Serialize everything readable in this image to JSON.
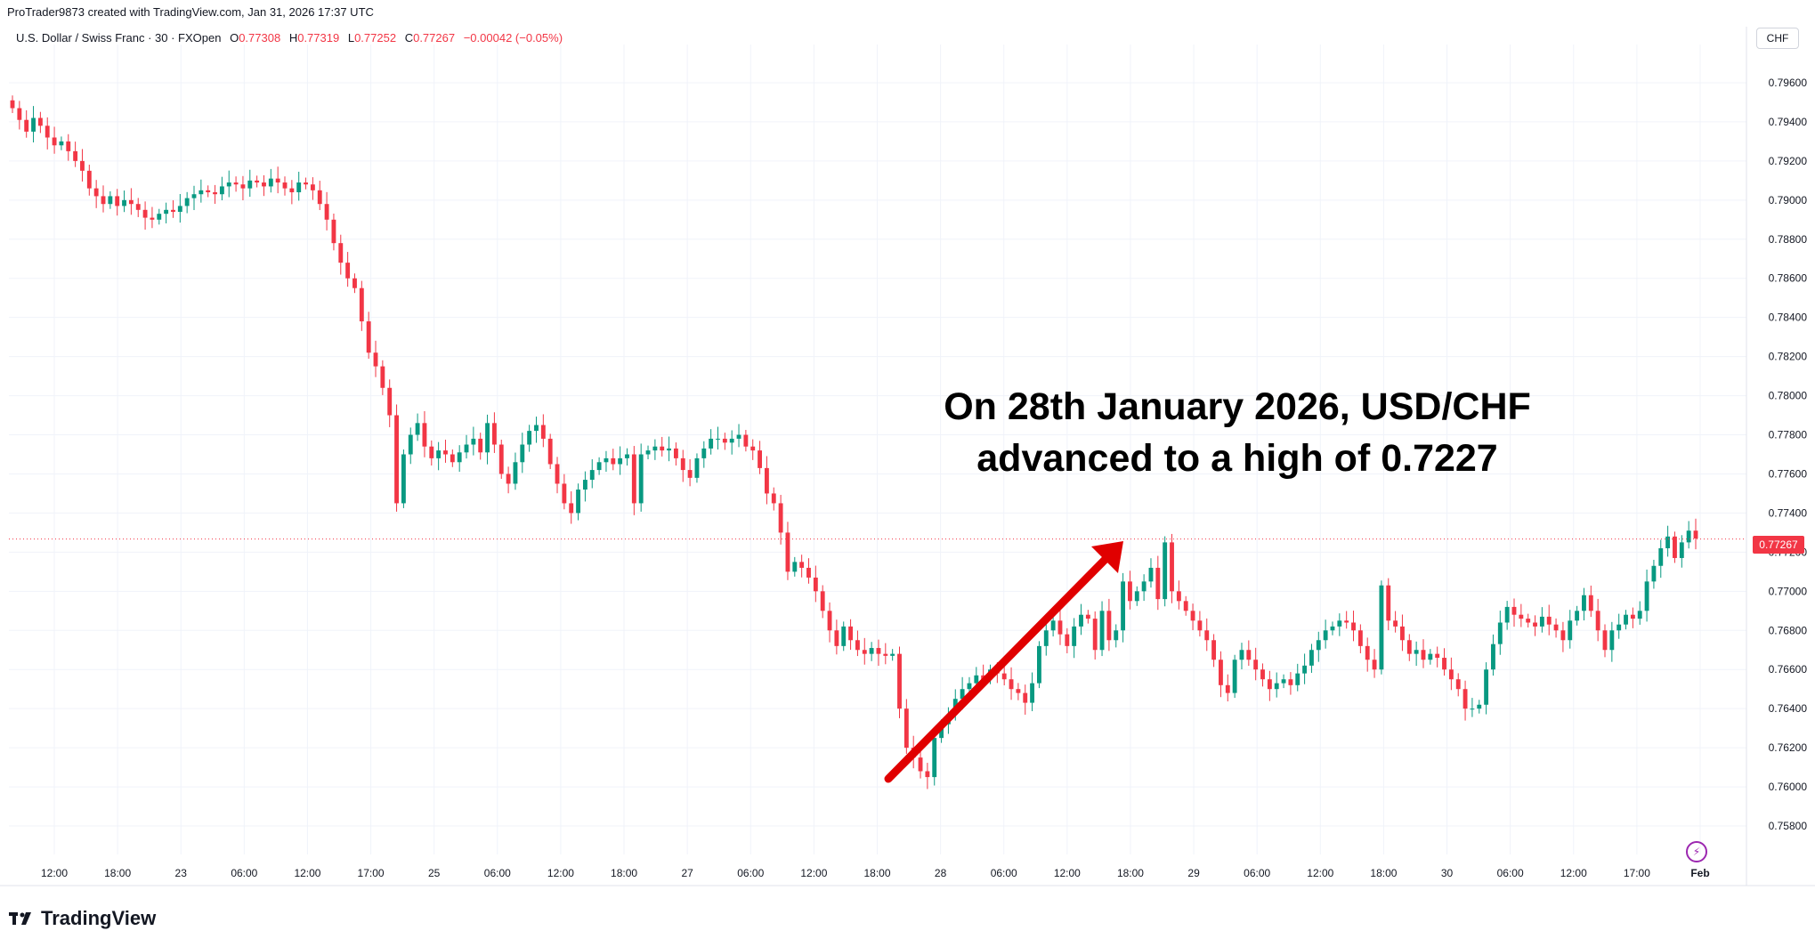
{
  "header": {
    "credit": "ProTrader9873 created with TradingView.com, Jan 31, 2026 17:37 UTC",
    "symbol": "U.S. Dollar / Swiss Franc · 30 · FXOpen",
    "ohlc": [
      {
        "k": "O",
        "v": "0.77308"
      },
      {
        "k": "H",
        "v": "0.77319"
      },
      {
        "k": "L",
        "v": "0.77252"
      },
      {
        "k": "C",
        "v": "0.77267"
      }
    ],
    "change": "−0.00042 (−0.05%)",
    "currency_button": "CHF"
  },
  "annotation": {
    "line1": "On 28th January 2026, USD/CHF",
    "line2": "advanced to a high of 0.7227"
  },
  "brand": {
    "name": "TradingView"
  },
  "icons": {
    "brand": "tradingview-logo-icon",
    "bolt": "lightning-icon"
  },
  "colors": {
    "up": "#089981",
    "down": "#f23645",
    "arrow": "#e00000",
    "grid": "#f0f3fa"
  },
  "chart_data": {
    "type": "candlestick",
    "title": "U.S. Dollar / Swiss Franc · 30 · FXOpen",
    "ylim": [
      0.757,
      0.7975
    ],
    "y_ticks": [
      "0.79600",
      "0.79400",
      "0.79200",
      "0.79000",
      "0.78800",
      "0.78600",
      "0.78400",
      "0.78200",
      "0.78000",
      "0.77800",
      "0.77600",
      "0.77400",
      "0.77200",
      "0.77000",
      "0.76800",
      "0.76600",
      "0.76400",
      "0.76200",
      "0.76000",
      "0.75800"
    ],
    "x_ticks": [
      "12:00",
      "18:00",
      "23",
      "06:00",
      "12:00",
      "17:00",
      "25",
      "06:00",
      "12:00",
      "18:00",
      "27",
      "06:00",
      "12:00",
      "18:00",
      "28",
      "06:00",
      "12:00",
      "18:00",
      "29",
      "06:00",
      "12:00",
      "18:00",
      "30",
      "06:00",
      "12:00",
      "17:00",
      "Feb"
    ],
    "last_price": "0.77267",
    "series": [
      {
        "values": [
          0.7947,
          0.7941,
          0.7935,
          0.7942,
          0.7938,
          0.7932,
          0.7928,
          0.793,
          0.7925,
          0.792,
          0.7915,
          0.7906,
          0.7902,
          0.7898,
          0.7902,
          0.7897,
          0.79,
          0.7898,
          0.7895,
          0.7891,
          0.789,
          0.7893,
          0.7895,
          0.7894,
          0.7897,
          0.7901,
          0.7903,
          0.7905,
          0.7904,
          0.7903,
          0.7907,
          0.7909,
          0.7908,
          0.7906,
          0.791,
          0.7909,
          0.7907,
          0.7911,
          0.7909,
          0.7906,
          0.7904,
          0.7909,
          0.7908,
          0.7905,
          0.7898,
          0.789,
          0.7878,
          0.7868,
          0.786,
          0.7855,
          0.7838,
          0.7822,
          0.7815,
          0.7804,
          0.779,
          0.7745,
          0.777,
          0.778,
          0.7786,
          0.7774,
          0.7768,
          0.7772,
          0.777,
          0.7766,
          0.7771,
          0.7775,
          0.7778,
          0.7771,
          0.7786,
          0.7775,
          0.776,
          0.7755,
          0.7766,
          0.7775,
          0.7782,
          0.7785,
          0.7778,
          0.7765,
          0.7755,
          0.7745,
          0.774,
          0.7752,
          0.7757,
          0.7762,
          0.7766,
          0.7768,
          0.7765,
          0.7768,
          0.777,
          0.7745,
          0.777,
          0.7772,
          0.7774,
          0.7772,
          0.7773,
          0.7768,
          0.7762,
          0.7758,
          0.7768,
          0.7773,
          0.7778,
          0.7778,
          0.7776,
          0.7778,
          0.778,
          0.7774,
          0.7772,
          0.7763,
          0.775,
          0.7745,
          0.773,
          0.771,
          0.7715,
          0.7712,
          0.7707,
          0.77,
          0.769,
          0.768,
          0.7672,
          0.7682,
          0.7675,
          0.767,
          0.7668,
          0.7671,
          0.7668,
          0.7667,
          0.7668,
          0.764,
          0.762,
          0.7615,
          0.7608,
          0.7605,
          0.7625,
          0.7632,
          0.7637,
          0.7645,
          0.765,
          0.7653,
          0.7657,
          0.7655,
          0.766,
          0.7658,
          0.7655,
          0.765,
          0.7648,
          0.7643,
          0.7653,
          0.7672,
          0.768,
          0.7685,
          0.7678,
          0.7672,
          0.7682,
          0.7688,
          0.7686,
          0.767,
          0.769,
          0.7675,
          0.768,
          0.7705,
          0.7695,
          0.77,
          0.7705,
          0.7712,
          0.7696,
          0.7725,
          0.77,
          0.7695,
          0.769,
          0.7685,
          0.768,
          0.7675,
          0.7665,
          0.7652,
          0.7648,
          0.7665,
          0.767,
          0.7665,
          0.766,
          0.7655,
          0.765,
          0.7653,
          0.7655,
          0.7652,
          0.7658,
          0.7662,
          0.767,
          0.7675,
          0.768,
          0.7682,
          0.7685,
          0.7684,
          0.768,
          0.7672,
          0.7665,
          0.766,
          0.7703,
          0.7685,
          0.7682,
          0.7675,
          0.7668,
          0.767,
          0.7665,
          0.7668,
          0.7666,
          0.766,
          0.7655,
          0.765,
          0.764,
          0.764,
          0.7642,
          0.766,
          0.7673,
          0.7684,
          0.7692,
          0.7688,
          0.7686,
          0.7684,
          0.7682,
          0.7687,
          0.7683,
          0.768,
          0.7675,
          0.7685,
          0.769,
          0.7698,
          0.769,
          0.768,
          0.767,
          0.768,
          0.7683,
          0.7688,
          0.7686,
          0.769,
          0.7705,
          0.7713,
          0.7722,
          0.7728,
          0.7717,
          0.7725,
          0.7731,
          0.7727
        ]
      }
    ]
  }
}
